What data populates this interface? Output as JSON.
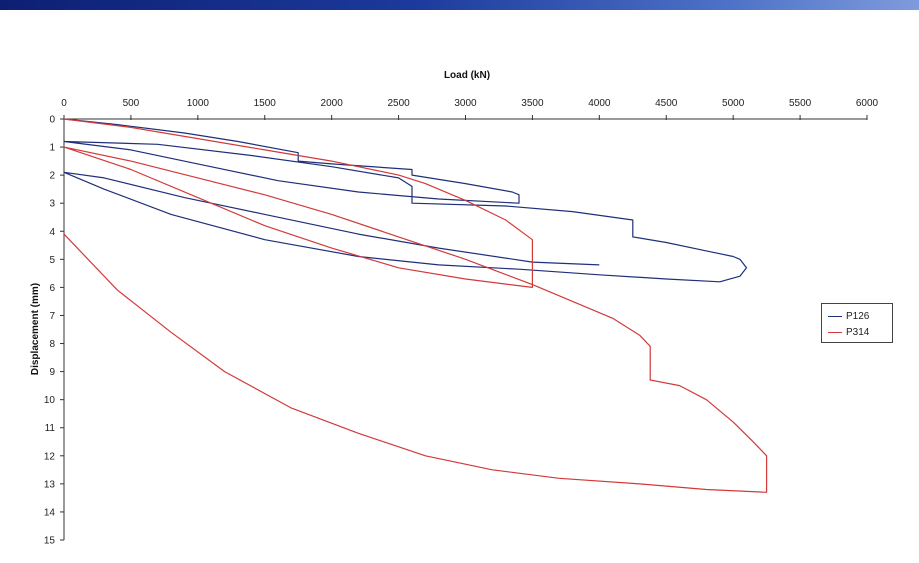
{
  "chart_data": {
    "type": "line",
    "title": "",
    "xlabel": "Load (kN)",
    "ylabel": "Displacement (mm)",
    "xlim": [
      0,
      6000
    ],
    "ylim": [
      0,
      15
    ],
    "x_axis_position": "top",
    "y_axis_inverted": true,
    "x_ticks": [
      0,
      500,
      1000,
      1500,
      2000,
      2500,
      3000,
      3500,
      4000,
      4500,
      5000,
      5500,
      6000
    ],
    "y_ticks": [
      0,
      1,
      2,
      3,
      4,
      5,
      6,
      7,
      8,
      9,
      10,
      11,
      12,
      13,
      14,
      15
    ],
    "grid": false,
    "legend_position": "right",
    "series": [
      {
        "name": "P126",
        "color": "#1f2f7a",
        "points": [
          [
            0,
            0
          ],
          [
            400,
            0.2
          ],
          [
            900,
            0.5
          ],
          [
            1300,
            0.8
          ],
          [
            1750,
            1.2
          ],
          [
            1750,
            1.5
          ],
          [
            2000,
            1.6
          ],
          [
            2600,
            1.8
          ],
          [
            2600,
            2.0
          ],
          [
            3000,
            2.3
          ],
          [
            3350,
            2.6
          ],
          [
            3400,
            2.7
          ],
          [
            3400,
            3.0
          ],
          [
            2800,
            2.85
          ],
          [
            2200,
            2.6
          ],
          [
            1600,
            2.2
          ],
          [
            1000,
            1.6
          ],
          [
            500,
            1.1
          ],
          [
            0,
            0.8
          ],
          [
            700,
            0.9
          ],
          [
            1400,
            1.3
          ],
          [
            2000,
            1.7
          ],
          [
            2500,
            2.1
          ],
          [
            2600,
            2.4
          ],
          [
            2600,
            3.0
          ],
          [
            3300,
            3.1
          ],
          [
            3800,
            3.3
          ],
          [
            4250,
            3.6
          ],
          [
            4250,
            4.2
          ],
          [
            4500,
            4.4
          ],
          [
            4800,
            4.7
          ],
          [
            5000,
            4.9
          ],
          [
            5050,
            5.0
          ],
          [
            5100,
            5.3
          ],
          [
            5050,
            5.6
          ],
          [
            4900,
            5.8
          ],
          [
            4500,
            5.7
          ],
          [
            4000,
            5.55
          ],
          [
            3400,
            5.35
          ],
          [
            2800,
            5.2
          ],
          [
            2200,
            4.9
          ],
          [
            1500,
            4.3
          ],
          [
            800,
            3.4
          ],
          [
            300,
            2.5
          ],
          [
            0,
            1.9
          ],
          [
            300,
            2.1
          ],
          [
            900,
            2.8
          ],
          [
            1500,
            3.4
          ],
          [
            2200,
            4.1
          ],
          [
            2800,
            4.6
          ],
          [
            3500,
            5.1
          ],
          [
            4000,
            5.2
          ]
        ]
      },
      {
        "name": "P314",
        "color": "#d23a3a",
        "points": [
          [
            0,
            0
          ],
          [
            500,
            0.3
          ],
          [
            1000,
            0.7
          ],
          [
            1500,
            1.1
          ],
          [
            2000,
            1.5
          ],
          [
            2500,
            2.0
          ],
          [
            2700,
            2.3
          ],
          [
            3000,
            2.9
          ],
          [
            3300,
            3.6
          ],
          [
            3500,
            4.3
          ],
          [
            3500,
            6.0
          ],
          [
            3000,
            5.7
          ],
          [
            2500,
            5.3
          ],
          [
            2000,
            4.6
          ],
          [
            1500,
            3.8
          ],
          [
            1000,
            2.8
          ],
          [
            500,
            1.8
          ],
          [
            0,
            1.0
          ],
          [
            500,
            1.5
          ],
          [
            1000,
            2.1
          ],
          [
            1500,
            2.7
          ],
          [
            2000,
            3.4
          ],
          [
            2500,
            4.2
          ],
          [
            3000,
            5.0
          ],
          [
            3500,
            5.9
          ],
          [
            3800,
            6.5
          ],
          [
            4100,
            7.1
          ],
          [
            4300,
            7.7
          ],
          [
            4380,
            8.1
          ],
          [
            4380,
            9.3
          ],
          [
            4600,
            9.5
          ],
          [
            4800,
            10.0
          ],
          [
            5000,
            10.8
          ],
          [
            5150,
            11.5
          ],
          [
            5250,
            12.0
          ],
          [
            5250,
            13.3
          ],
          [
            4800,
            13.2
          ],
          [
            4300,
            13.0
          ],
          [
            3700,
            12.8
          ],
          [
            3200,
            12.5
          ],
          [
            2700,
            12.0
          ],
          [
            2200,
            11.2
          ],
          [
            1700,
            10.3
          ],
          [
            1200,
            9.0
          ],
          [
            800,
            7.6
          ],
          [
            400,
            6.1
          ],
          [
            0,
            4.1
          ]
        ]
      }
    ]
  }
}
